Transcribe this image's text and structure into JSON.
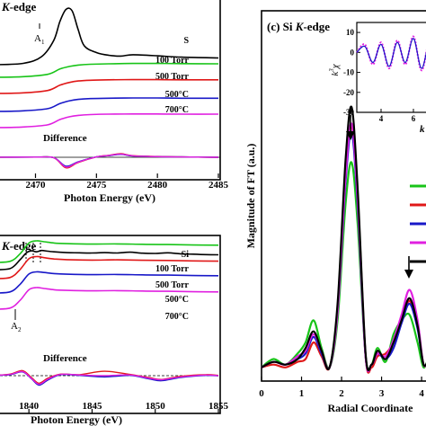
{
  "chart_data": [
    {
      "panel": "a",
      "type": "line",
      "title": "K-edge",
      "title_italic_part": "K",
      "title_rest": "-edge",
      "xlabel": "Photon Energy (eV)",
      "xlim": [
        2466.5,
        2485
      ],
      "xticks": [
        2470,
        2475,
        2480,
        2485
      ],
      "peak_label": "A",
      "peak_label_sub": "1",
      "difference_label": "Difference",
      "series": [
        {
          "name": "S",
          "color": "#000000",
          "offset": 5,
          "x": [
            2466.5,
            2469,
            2470.5,
            2471.5,
            2472,
            2472.5,
            2473,
            2473.5,
            2474,
            2475,
            2476,
            2477,
            2478,
            2480,
            2482,
            2485
          ],
          "y": [
            0.0,
            0.05,
            0.3,
            0.9,
            1.6,
            2.05,
            2.0,
            1.3,
            0.7,
            0.45,
            0.35,
            0.32,
            0.37,
            0.33,
            0.28,
            0.25
          ]
        },
        {
          "name": "100 Torr",
          "color": "#18c418",
          "offset": 4,
          "x": [
            2466.5,
            2469,
            2471,
            2472,
            2472.8,
            2473.5,
            2474.5,
            2476,
            2478,
            2480,
            2482,
            2485
          ],
          "y": [
            0.0,
            0.03,
            0.15,
            0.42,
            0.55,
            0.62,
            0.66,
            0.68,
            0.7,
            0.7,
            0.69,
            0.68
          ]
        },
        {
          "name": "500 Torr",
          "color": "#e01818",
          "offset": 3,
          "x": [
            2466.5,
            2469,
            2471,
            2472,
            2472.8,
            2473.5,
            2474.5,
            2476,
            2478,
            2480,
            2482,
            2485
          ],
          "y": [
            0.0,
            0.03,
            0.15,
            0.42,
            0.56,
            0.63,
            0.67,
            0.69,
            0.7,
            0.7,
            0.69,
            0.69
          ]
        },
        {
          "name": "500°C",
          "color": "#1818c8",
          "offset": 2,
          "x": [
            2466.5,
            2469,
            2471,
            2472,
            2472.8,
            2473.5,
            2474.5,
            2476,
            2478,
            2480,
            2482,
            2485
          ],
          "y": [
            0.0,
            0.03,
            0.14,
            0.4,
            0.54,
            0.61,
            0.65,
            0.67,
            0.68,
            0.68,
            0.67,
            0.67
          ]
        },
        {
          "name": "700°C",
          "color": "#e020e0",
          "offset": 1,
          "x": [
            2466.5,
            2469,
            2471,
            2472,
            2472.8,
            2473.5,
            2474.5,
            2476,
            2478,
            2480,
            2482,
            2485
          ],
          "y": [
            0.0,
            0.03,
            0.14,
            0.41,
            0.55,
            0.62,
            0.66,
            0.68,
            0.69,
            0.69,
            0.68,
            0.68
          ]
        }
      ],
      "difference_series": [
        {
          "color": "#18c418",
          "x": [
            2466.5,
            2470,
            2471.5,
            2472.5,
            2473.5,
            2475,
            2476,
            2477,
            2478,
            2480,
            2482,
            2485
          ],
          "y": [
            0,
            0.01,
            -0.02,
            -0.6,
            -0.3,
            0.02,
            0.1,
            0.2,
            0.08,
            0.04,
            0.02,
            0
          ]
        },
        {
          "color": "#e01818",
          "x": [
            2466.5,
            2470,
            2471.5,
            2472.5,
            2473.5,
            2475,
            2476,
            2477,
            2478,
            2480,
            2482,
            2485
          ],
          "y": [
            0,
            0.01,
            -0.03,
            -0.65,
            -0.32,
            0.02,
            0.12,
            0.22,
            0.1,
            0.05,
            0.02,
            0
          ]
        },
        {
          "color": "#1818c8",
          "x": [
            2466.5,
            2470,
            2471.5,
            2472.5,
            2473.5,
            2475,
            2476,
            2477,
            2478,
            2480,
            2482,
            2485
          ],
          "y": [
            0,
            0.01,
            -0.02,
            -0.55,
            -0.28,
            0.02,
            0.1,
            0.18,
            0.08,
            0.04,
            0.02,
            0
          ]
        },
        {
          "color": "#e020e0",
          "x": [
            2466.5,
            2470,
            2471.5,
            2472.5,
            2473.5,
            2475,
            2476,
            2477,
            2478,
            2480,
            2482,
            2485
          ],
          "y": [
            0,
            0.01,
            -0.02,
            -0.6,
            -0.3,
            0.02,
            0.11,
            0.2,
            0.09,
            0.04,
            0.02,
            0
          ]
        }
      ]
    },
    {
      "panel": "b",
      "type": "line",
      "title": "K-edge",
      "title_italic_part": "K",
      "title_rest": "-edge",
      "xlabel": "Photon Energy (eV)",
      "xlim": [
        1837,
        1855
      ],
      "xticks": [
        1840,
        1845,
        1850,
        1855
      ],
      "peak_label": "A",
      "peak_label_sub": "2",
      "difference_label": "Difference",
      "series": [
        {
          "name": "Si",
          "color": "#000000",
          "offset": 5,
          "x": [
            1837,
            1838.5,
            1839.3,
            1839.8,
            1840.2,
            1840.6,
            1841,
            1841.5,
            1842,
            1843,
            1844,
            1845,
            1846,
            1847,
            1848,
            1849,
            1850,
            1851,
            1852,
            1853,
            1854,
            1855
          ],
          "y": [
            0.0,
            0.05,
            0.5,
            0.85,
            0.95,
            0.9,
            0.97,
            0.93,
            0.9,
            0.86,
            0.85,
            0.84,
            0.86,
            0.84,
            0.88,
            0.83,
            0.82,
            0.85,
            0.8,
            0.78,
            0.76,
            0.75
          ]
        },
        {
          "name": "100 Torr",
          "color": "#18c418",
          "offset": 4,
          "x": [
            1837,
            1838.5,
            1839.3,
            1840,
            1840.6,
            1841.2,
            1842,
            1843,
            1845,
            1847,
            1849,
            1851,
            1853,
            1855
          ],
          "y": [
            0.0,
            0.05,
            0.4,
            0.9,
            1.0,
            0.96,
            0.9,
            0.87,
            0.85,
            0.86,
            0.84,
            0.83,
            0.81,
            0.8
          ]
        },
        {
          "name": "500 Torr",
          "color": "#e01818",
          "offset": 3,
          "x": [
            1837,
            1838.5,
            1839.3,
            1840,
            1840.6,
            1841.2,
            1842,
            1843,
            1845,
            1847,
            1849,
            1851,
            1853,
            1855
          ],
          "y": [
            0.0,
            0.05,
            0.42,
            0.92,
            1.02,
            0.97,
            0.91,
            0.88,
            0.86,
            0.87,
            0.85,
            0.84,
            0.82,
            0.81
          ]
        },
        {
          "name": "500°C",
          "color": "#1818c8",
          "offset": 2,
          "x": [
            1837,
            1838.5,
            1839.3,
            1840,
            1840.6,
            1841.2,
            1842,
            1843,
            1845,
            1847,
            1849,
            1851,
            1853,
            1855
          ],
          "y": [
            0.0,
            0.05,
            0.4,
            0.88,
            0.98,
            0.95,
            0.9,
            0.87,
            0.85,
            0.86,
            0.84,
            0.83,
            0.81,
            0.8
          ]
        },
        {
          "name": "700°C",
          "color": "#e020e0",
          "offset": 1,
          "x": [
            1837,
            1838.5,
            1839.3,
            1840,
            1840.6,
            1841.2,
            1842,
            1843,
            1845,
            1847,
            1849,
            1851,
            1853,
            1855
          ],
          "y": [
            0.0,
            0.05,
            0.41,
            0.9,
            1.0,
            0.96,
            0.9,
            0.87,
            0.85,
            0.86,
            0.84,
            0.83,
            0.81,
            0.8
          ]
        }
      ],
      "difference_series": [
        {
          "color": "#18c418",
          "x": [
            1837,
            1838.5,
            1839.5,
            1840.2,
            1840.8,
            1841.5,
            1842.5,
            1844,
            1846,
            1848,
            1849.5,
            1850.5,
            1852,
            1854,
            1855
          ],
          "y": [
            0,
            0.1,
            0.35,
            -0.2,
            -0.7,
            -0.3,
            0.1,
            0.05,
            -0.05,
            0.05,
            -0.2,
            -0.35,
            -0.1,
            0.05,
            0
          ]
        },
        {
          "color": "#e01818",
          "x": [
            1837,
            1838.5,
            1839.5,
            1840.2,
            1840.8,
            1841.5,
            1842.5,
            1844,
            1846,
            1848,
            1849.5,
            1850.5,
            1852,
            1854,
            1855
          ],
          "y": [
            0,
            0.12,
            0.4,
            -0.15,
            -0.6,
            -0.2,
            0.12,
            0.08,
            0.35,
            0.1,
            -0.15,
            -0.3,
            -0.05,
            0.08,
            0.02
          ]
        },
        {
          "color": "#1818c8",
          "x": [
            1837,
            1838.5,
            1839.5,
            1840.2,
            1840.8,
            1841.5,
            1842.5,
            1844,
            1846,
            1848,
            1849.5,
            1850.5,
            1852,
            1854,
            1855
          ],
          "y": [
            0,
            0.08,
            0.3,
            -0.25,
            -0.75,
            -0.35,
            0.08,
            0.02,
            -0.1,
            0.02,
            -0.25,
            -0.4,
            -0.15,
            0.02,
            -0.02
          ]
        },
        {
          "color": "#e020e0",
          "x": [
            1837,
            1838.5,
            1839.5,
            1840.2,
            1840.8,
            1841.5,
            1842.5,
            1844,
            1846,
            1848,
            1849.5,
            1850.5,
            1852,
            1854,
            1855
          ],
          "y": [
            0,
            0.1,
            0.33,
            -0.22,
            -0.68,
            -0.28,
            0.1,
            0.06,
            0.0,
            0.06,
            -0.2,
            -0.32,
            -0.1,
            0.05,
            0
          ]
        }
      ]
    },
    {
      "panel": "c",
      "type": "line",
      "title": "(c) Si K-edge",
      "title_prefix": "(c) Si ",
      "title_italic_part": "K",
      "title_rest": "-edge",
      "xlabel": "Radial Coordinate",
      "ylabel": "Magnitude of FT (a.u.)",
      "xlim": [
        0,
        4.2
      ],
      "ylim": [
        0,
        1.0
      ],
      "xticks": [
        0,
        1,
        2,
        3,
        4
      ],
      "series": [
        {
          "color": "#18c418",
          "x": [
            0,
            0.3,
            0.6,
            0.9,
            1.1,
            1.3,
            1.5,
            1.7,
            1.9,
            2.1,
            2.25,
            2.4,
            2.6,
            2.75,
            2.9,
            3.1,
            3.3,
            3.5,
            3.7,
            3.9,
            4.05,
            4.2
          ],
          "y": [
            0.03,
            0.06,
            0.04,
            0.08,
            0.12,
            0.2,
            0.1,
            0.03,
            0.2,
            0.62,
            0.77,
            0.55,
            0.07,
            0.04,
            0.1,
            0.05,
            0.15,
            0.2,
            0.22,
            0.12,
            0.03,
            0.08
          ]
        },
        {
          "color": "#e01818",
          "x": [
            0,
            0.3,
            0.6,
            0.9,
            1.1,
            1.3,
            1.5,
            1.7,
            1.9,
            2.1,
            2.25,
            2.4,
            2.6,
            2.75,
            2.9,
            3.1,
            3.3,
            3.5,
            3.7,
            3.9,
            4.05,
            4.2
          ],
          "y": [
            0.03,
            0.04,
            0.03,
            0.05,
            0.06,
            0.12,
            0.07,
            0.03,
            0.24,
            0.72,
            0.9,
            0.65,
            0.07,
            0.03,
            0.07,
            0.08,
            0.12,
            0.2,
            0.27,
            0.18,
            0.04,
            0.06
          ]
        },
        {
          "color": "#1818c8",
          "x": [
            0,
            0.3,
            0.6,
            0.9,
            1.1,
            1.3,
            1.5,
            1.7,
            1.9,
            2.1,
            2.25,
            2.4,
            2.6,
            2.75,
            2.9,
            3.1,
            3.3,
            3.5,
            3.7,
            3.9,
            4.05,
            4.2
          ],
          "y": [
            0.03,
            0.05,
            0.04,
            0.06,
            0.08,
            0.14,
            0.08,
            0.03,
            0.23,
            0.7,
            0.88,
            0.62,
            0.07,
            0.04,
            0.08,
            0.06,
            0.1,
            0.19,
            0.26,
            0.17,
            0.04,
            0.06
          ]
        },
        {
          "color": "#e020e0",
          "x": [
            0,
            0.3,
            0.6,
            0.9,
            1.1,
            1.3,
            1.5,
            1.7,
            1.9,
            2.1,
            2.25,
            2.4,
            2.6,
            2.75,
            2.9,
            3.1,
            3.3,
            3.5,
            3.7,
            3.9,
            4.05,
            4.2
          ],
          "y": [
            0.03,
            0.05,
            0.04,
            0.07,
            0.09,
            0.15,
            0.09,
            0.03,
            0.23,
            0.72,
            0.91,
            0.64,
            0.07,
            0.04,
            0.08,
            0.07,
            0.13,
            0.22,
            0.31,
            0.2,
            0.04,
            0.07
          ]
        },
        {
          "color": "#000000",
          "x": [
            0,
            0.3,
            0.6,
            0.9,
            1.1,
            1.3,
            1.5,
            1.7,
            1.9,
            2.1,
            2.25,
            2.4,
            2.6,
            2.75,
            2.9,
            3.1,
            3.3,
            3.5,
            3.7,
            3.9,
            4.05,
            4.2
          ],
          "y": [
            0.03,
            0.05,
            0.04,
            0.06,
            0.1,
            0.16,
            0.09,
            0.03,
            0.26,
            0.78,
            0.97,
            0.68,
            0.08,
            0.04,
            0.09,
            0.06,
            0.12,
            0.2,
            0.28,
            0.18,
            0.04,
            0.07
          ]
        }
      ],
      "inset": {
        "ylabel": "k",
        "ylabel_sup": "3",
        "ylabel_tail": "χ",
        "xlabel": "k",
        "xticks": [
          4,
          6
        ],
        "yticks": [
          10,
          0,
          -10,
          -20,
          -30
        ],
        "xlim": [
          2.5,
          7.5
        ],
        "ylim": [
          -30,
          15
        ],
        "series": [
          {
            "color": "#e020e0",
            "x": [
              2.5,
              3,
              3.5,
              4,
              4.5,
              5,
              5.5,
              6,
              6.5,
              7,
              7.5
            ],
            "y": [
              0,
              4,
              -6,
              5,
              -8,
              6,
              -6,
              8,
              -9,
              6,
              -3
            ]
          },
          {
            "color": "#1818c8",
            "x": [
              2.5,
              3,
              3.5,
              4,
              4.5,
              5,
              5.5,
              6,
              6.5,
              7,
              7.5
            ],
            "y": [
              0,
              3,
              -5,
              4,
              -7,
              5,
              -5,
              7,
              -8,
              5,
              -2
            ]
          }
        ]
      }
    }
  ]
}
